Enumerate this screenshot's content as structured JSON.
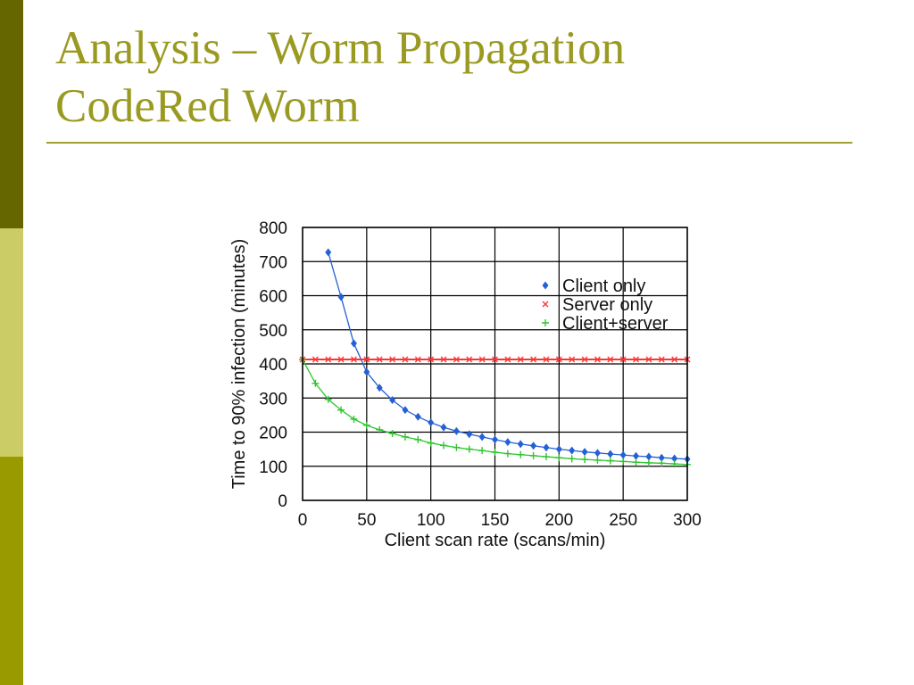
{
  "slide": {
    "title_line1": "Analysis – Worm Propagation",
    "title_line2": "CodeRed Worm",
    "colors": {
      "title": "#9a9a22",
      "rule": "#a0a030",
      "side_bar_top": "#666600",
      "side_bar_middle": "#cccc66",
      "side_bar_bottom": "#999900"
    }
  },
  "chart_data": {
    "type": "line",
    "xlabel": "Client scan rate (scans/min)",
    "ylabel": "Time to 90% infection (minutes)",
    "xlim": [
      0,
      300
    ],
    "ylim": [
      0,
      800
    ],
    "xticks": [
      0,
      50,
      100,
      150,
      200,
      250,
      300
    ],
    "yticks": [
      0,
      100,
      200,
      300,
      400,
      500,
      600,
      700,
      800
    ],
    "grid": true,
    "legend": "top-right",
    "series": [
      {
        "name": "Client only",
        "color": "#2461d4",
        "marker": "diamond",
        "x": [
          20,
          30,
          40,
          50,
          60,
          70,
          80,
          90,
          100,
          110,
          120,
          130,
          140,
          150,
          160,
          170,
          180,
          190,
          200,
          210,
          220,
          230,
          240,
          250,
          260,
          270,
          280,
          290,
          300
        ],
        "y": [
          727,
          596,
          460,
          376,
          330,
          294,
          265,
          245,
          228,
          214,
          203,
          194,
          186,
          178,
          171,
          165,
          160,
          155,
          150,
          146,
          142,
          139,
          136,
          133,
          130,
          128,
          125,
          123,
          121
        ]
      },
      {
        "name": "Server only",
        "color": "#ff3333",
        "marker": "x",
        "x": [
          0,
          10,
          20,
          30,
          40,
          50,
          60,
          70,
          80,
          90,
          100,
          110,
          120,
          130,
          140,
          150,
          160,
          170,
          180,
          190,
          200,
          210,
          220,
          230,
          240,
          250,
          260,
          270,
          280,
          290,
          300
        ],
        "y": [
          413,
          413,
          413,
          413,
          413,
          413,
          413,
          413,
          413,
          413,
          413,
          413,
          413,
          413,
          413,
          413,
          413,
          413,
          413,
          413,
          413,
          413,
          413,
          413,
          413,
          413,
          413,
          413,
          413,
          413,
          413
        ]
      },
      {
        "name": "Client+server",
        "color": "#2ec42e",
        "marker": "plus",
        "x": [
          0,
          10,
          20,
          30,
          40,
          50,
          60,
          70,
          80,
          90,
          100,
          110,
          120,
          130,
          140,
          150,
          160,
          170,
          180,
          190,
          200,
          210,
          220,
          230,
          240,
          250,
          260,
          270,
          280,
          290,
          300
        ],
        "y": [
          413,
          343,
          296,
          265,
          238,
          220,
          207,
          196,
          186,
          178,
          168,
          161,
          155,
          150,
          146,
          141,
          137,
          134,
          131,
          128,
          125,
          122,
          120,
          118,
          116,
          114,
          112,
          110,
          109,
          107,
          105
        ]
      }
    ]
  }
}
